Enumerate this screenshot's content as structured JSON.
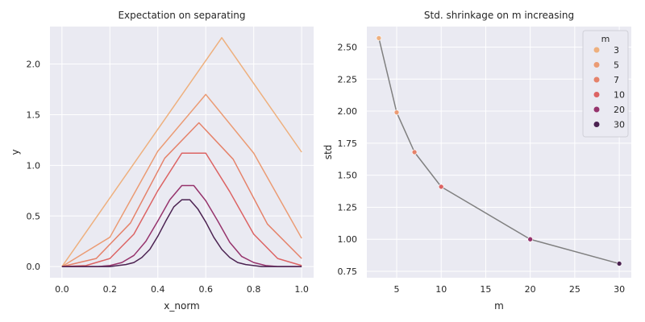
{
  "chart_data": [
    {
      "type": "line",
      "title": "Expectation on separating",
      "xlabel": "x_norm",
      "ylabel": "y",
      "xlim": [
        -0.05,
        1.05
      ],
      "ylim": [
        -0.11,
        2.37
      ],
      "xticks": [
        0.0,
        0.2,
        0.4,
        0.6,
        0.8,
        1.0
      ],
      "xtick_labels": [
        "0.0",
        "0.2",
        "0.4",
        "0.6",
        "0.8",
        "1.0"
      ],
      "yticks": [
        0.0,
        0.5,
        1.0,
        1.5,
        2.0
      ],
      "ytick_labels": [
        "0.0",
        "0.5",
        "1.0",
        "1.5",
        "2.0"
      ],
      "grid": true,
      "series": [
        {
          "color": "#eeb07e",
          "x": [
            0.0,
            0.6667,
            1.0
          ],
          "y": [
            0.0,
            2.26,
            1.13
          ]
        },
        {
          "color": "#eb9b74",
          "x": [
            0.0,
            0.2,
            0.4,
            0.6,
            0.8,
            1.0
          ],
          "y": [
            0.0,
            0.29,
            1.14,
            1.7,
            1.12,
            0.28
          ]
        },
        {
          "color": "#e5826a",
          "x": [
            0.0,
            0.1429,
            0.2857,
            0.4286,
            0.5714,
            0.7143,
            0.8571,
            1.0
          ],
          "y": [
            0.0,
            0.08,
            0.43,
            1.07,
            1.42,
            1.06,
            0.42,
            0.08
          ]
        },
        {
          "color": "#dc6363",
          "x": [
            0.0,
            0.1,
            0.2,
            0.3,
            0.4,
            0.5,
            0.6,
            0.7,
            0.8,
            0.9,
            1.0
          ],
          "y": [
            0.0,
            0.01,
            0.08,
            0.32,
            0.75,
            1.12,
            1.12,
            0.74,
            0.32,
            0.08,
            0.01
          ]
        },
        {
          "color": "#96336c",
          "x": [
            0.0,
            0.05,
            0.1,
            0.15,
            0.2,
            0.25,
            0.3,
            0.35,
            0.4,
            0.45,
            0.5,
            0.55,
            0.6,
            0.65,
            0.7,
            0.75,
            0.8,
            0.85,
            0.9,
            0.95,
            1.0
          ],
          "y": [
            0.0,
            0.0,
            0.0,
            0.0,
            0.01,
            0.04,
            0.11,
            0.25,
            0.45,
            0.66,
            0.8,
            0.8,
            0.65,
            0.45,
            0.24,
            0.1,
            0.04,
            0.01,
            0.0,
            0.0,
            0.0
          ]
        },
        {
          "color": "#4b2251",
          "x": [
            0.0,
            0.0333,
            0.0667,
            0.1,
            0.1333,
            0.1667,
            0.2,
            0.2333,
            0.2667,
            0.3,
            0.3333,
            0.3667,
            0.4,
            0.4333,
            0.4667,
            0.5,
            0.5333,
            0.5667,
            0.6,
            0.6333,
            0.6667,
            0.7,
            0.7333,
            0.7667,
            0.8,
            0.8333,
            0.8667,
            0.9,
            0.9333,
            0.9667,
            1.0
          ],
          "y": [
            0.0,
            0.0,
            0.0,
            0.0,
            0.0,
            0.0,
            0.0,
            0.01,
            0.02,
            0.04,
            0.09,
            0.17,
            0.3,
            0.45,
            0.59,
            0.66,
            0.66,
            0.57,
            0.44,
            0.29,
            0.17,
            0.09,
            0.04,
            0.02,
            0.01,
            0.0,
            0.0,
            0.0,
            0.0,
            0.0,
            0.0
          ]
        }
      ]
    },
    {
      "type": "scatter",
      "title": "Std. shrinkage on m increasing",
      "xlabel": "m",
      "ylabel": "std",
      "xlim": [
        1.65,
        31.35
      ],
      "ylim": [
        0.7,
        2.66
      ],
      "xticks": [
        5,
        10,
        15,
        20,
        25,
        30
      ],
      "xtick_labels": [
        "5",
        "10",
        "15",
        "20",
        "25",
        "30"
      ],
      "yticks": [
        0.75,
        1.0,
        1.25,
        1.5,
        1.75,
        2.0,
        2.25,
        2.5
      ],
      "ytick_labels": [
        "0.75",
        "1.00",
        "1.25",
        "1.50",
        "1.75",
        "2.00",
        "2.25",
        "2.50"
      ],
      "grid": true,
      "line_color": "#808080",
      "x": [
        3,
        5,
        7,
        10,
        20,
        30
      ],
      "y": [
        2.57,
        1.99,
        1.68,
        1.41,
        1.0,
        0.81
      ],
      "point_colors": [
        "#eeb07e",
        "#eb9b74",
        "#e5826a",
        "#dc6363",
        "#96336c",
        "#4b2251"
      ],
      "legend": {
        "title": "m",
        "placement": "upper right",
        "items": [
          {
            "label": "3",
            "color": "#eeb07e"
          },
          {
            "label": "5",
            "color": "#eb9b74"
          },
          {
            "label": "7",
            "color": "#e5826a"
          },
          {
            "label": "10",
            "color": "#dc6363"
          },
          {
            "label": "20",
            "color": "#96336c"
          },
          {
            "label": "30",
            "color": "#4b2251"
          }
        ]
      }
    }
  ]
}
